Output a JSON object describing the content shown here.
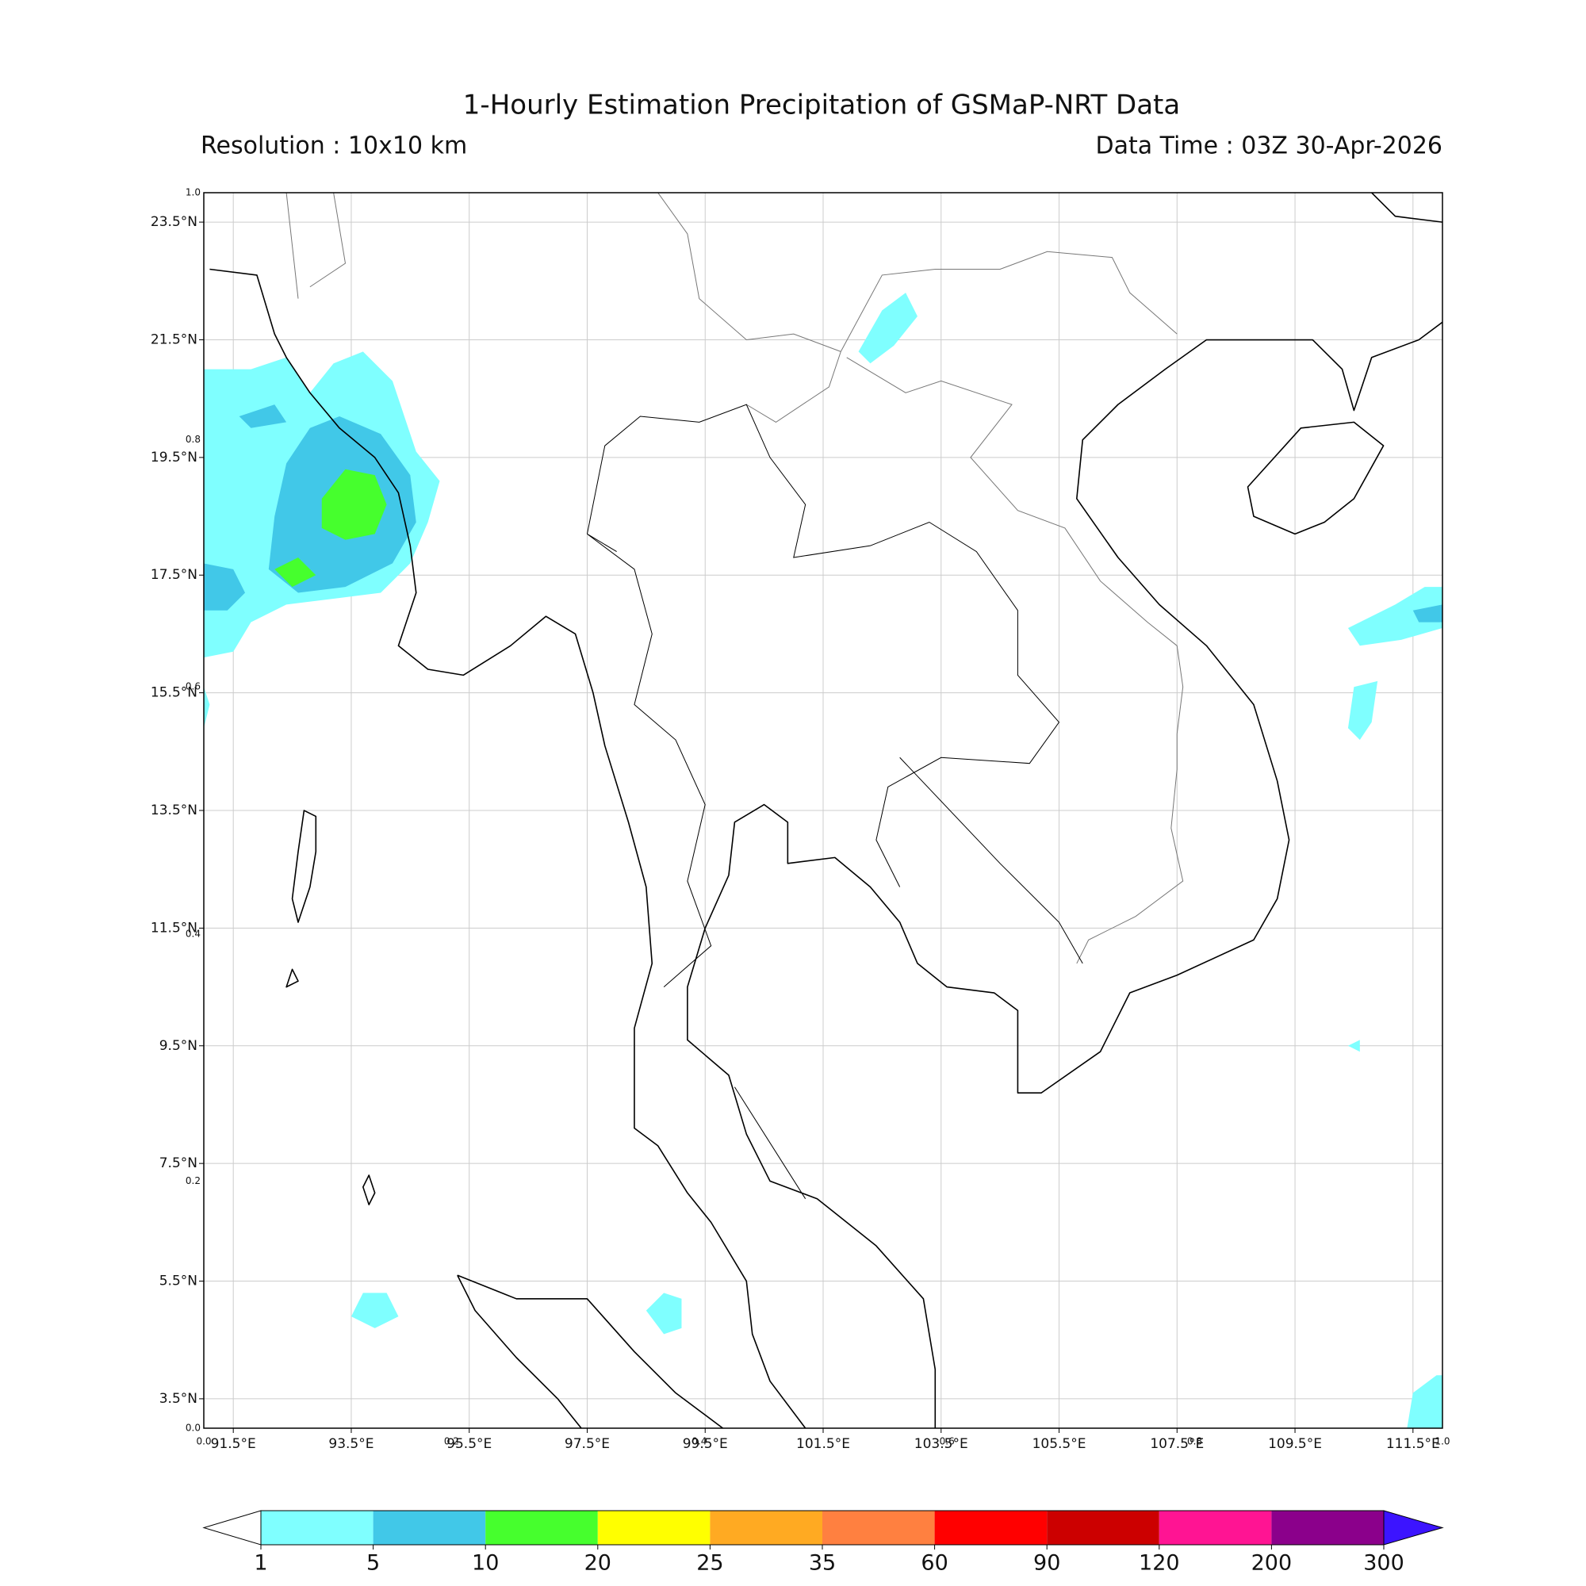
{
  "title": "1-Hourly Estimation Precipitation of GSMaP-NRT Data",
  "resolution": "Resolution : 10x10 km",
  "data_time": "Data Time : 03Z 30-Apr-2026",
  "map": {
    "xlim": [
      91,
      112
    ],
    "ylim": [
      3,
      24
    ],
    "grid": true,
    "xticks": [
      {
        "value": 91.5,
        "label": "91.5°E"
      },
      {
        "value": 93.5,
        "label": "93.5°E"
      },
      {
        "value": 95.5,
        "label": "95.5°E"
      },
      {
        "value": 97.5,
        "label": "97.5°E"
      },
      {
        "value": 99.5,
        "label": "99.5°E"
      },
      {
        "value": 101.5,
        "label": "101.5°E"
      },
      {
        "value": 103.5,
        "label": "103.5°E"
      },
      {
        "value": 105.5,
        "label": "105.5°E"
      },
      {
        "value": 107.5,
        "label": "107.5°E"
      },
      {
        "value": 109.5,
        "label": "109.5°E"
      },
      {
        "value": 111.5,
        "label": "111.5°E"
      }
    ],
    "yticks": [
      {
        "value": 23.5,
        "label": "23.5°N"
      },
      {
        "value": 21.5,
        "label": "21.5°N"
      },
      {
        "value": 19.5,
        "label": "19.5°N"
      },
      {
        "value": 17.5,
        "label": "17.5°N"
      },
      {
        "value": 15.5,
        "label": "15.5°N"
      },
      {
        "value": 13.5,
        "label": "13.5°N"
      },
      {
        "value": 11.5,
        "label": "11.5°N"
      },
      {
        "value": 9.5,
        "label": "9.5°N"
      },
      {
        "value": 7.5,
        "label": "7.5°N"
      },
      {
        "value": 5.5,
        "label": "5.5°N"
      },
      {
        "value": 3.5,
        "label": "3.5°N"
      }
    ]
  },
  "overlay_axis": {
    "xticks": [
      {
        "value": 0,
        "label": "0.0"
      },
      {
        "value": 0.2,
        "label": "0.2"
      },
      {
        "value": 0.4,
        "label": "0.4"
      },
      {
        "value": 0.6,
        "label": "0.6"
      },
      {
        "value": 0.8,
        "label": "0.8"
      },
      {
        "value": 1,
        "label": "1.0"
      }
    ],
    "yticks": [
      {
        "value": 0,
        "label": "0.0"
      },
      {
        "value": 0.2,
        "label": "0.2"
      },
      {
        "value": 0.4,
        "label": "0.4"
      },
      {
        "value": 0.6,
        "label": "0.6"
      },
      {
        "value": 0.8,
        "label": "0.8"
      },
      {
        "value": 1,
        "label": "1.0"
      }
    ]
  },
  "colorbar": {
    "levels": [
      1,
      5,
      10,
      20,
      25,
      35,
      60,
      90,
      120,
      200,
      300
    ],
    "colors": [
      "#7fffff",
      "#41c8e8",
      "#46ff2d",
      "#ffff00",
      "#ffaa22",
      "#ff8040",
      "#ff0000",
      "#cc0000",
      "#ff1493",
      "#8b008b"
    ],
    "under_color": "#ffffff",
    "over_color": "#3c14ff"
  }
}
